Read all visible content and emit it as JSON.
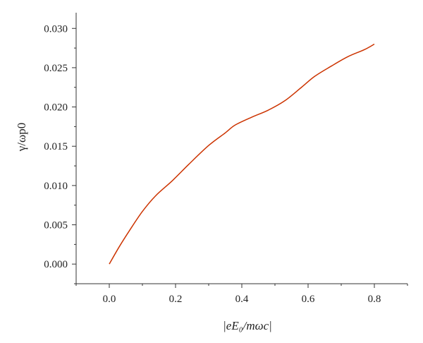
{
  "chart_data": {
    "type": "line",
    "title": "",
    "xlabel": "|eE₀/mωc|",
    "ylabel": "γ/ωp0",
    "xlim": [
      -0.1,
      0.9
    ],
    "ylim": [
      -0.0025,
      0.032
    ],
    "x_ticks": [
      0.0,
      0.2,
      0.4,
      0.6,
      0.8
    ],
    "x_tick_labels": [
      "0.0",
      "0.2",
      "0.4",
      "0.6",
      "0.8"
    ],
    "y_ticks": [
      0.0,
      0.005,
      0.01,
      0.015,
      0.02,
      0.025,
      0.03
    ],
    "y_tick_labels": [
      "0.000",
      "0.005",
      "0.010",
      "0.015",
      "0.020",
      "0.025",
      "0.030"
    ],
    "grid": false,
    "line_color": "#cc3300",
    "series": [
      {
        "x": [
          0.0,
          0.03,
          0.06,
          0.1,
          0.14,
          0.19,
          0.24,
          0.3,
          0.35,
          0.38,
          0.43,
          0.48,
          0.53,
          0.58,
          0.62,
          0.67,
          0.72,
          0.77,
          0.8
        ],
        "y": [
          0.0,
          0.0022,
          0.0042,
          0.0067,
          0.0087,
          0.0106,
          0.0127,
          0.0151,
          0.0167,
          0.0177,
          0.0187,
          0.0196,
          0.0208,
          0.0225,
          0.0239,
          0.0252,
          0.0264,
          0.0273,
          0.028
        ]
      }
    ]
  }
}
